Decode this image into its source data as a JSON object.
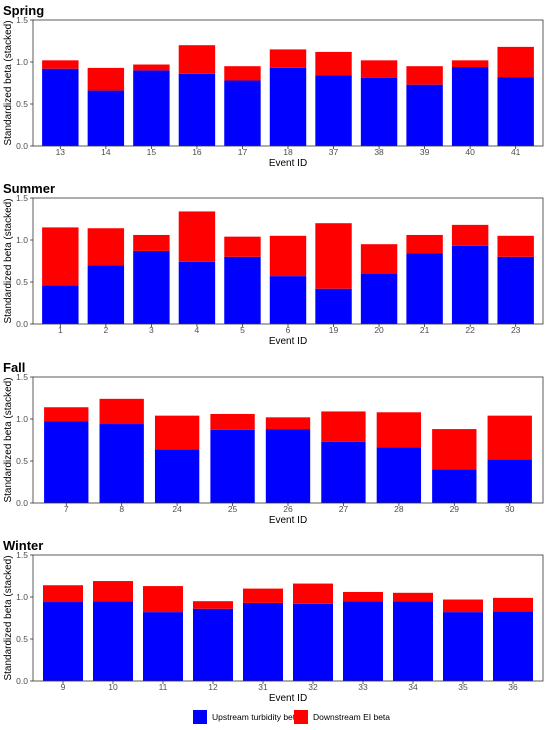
{
  "chart_data": [
    {
      "type": "bar",
      "stacked": true,
      "title": "Spring",
      "xlabel": "Event ID",
      "ylabel": "Standardized beta (stacked)",
      "ylim": [
        0,
        1.5
      ],
      "yticks": [
        "0.0",
        "0.5",
        "1.0",
        "1.5"
      ],
      "categories": [
        "13",
        "14",
        "15",
        "16",
        "17",
        "18",
        "37",
        "38",
        "39",
        "40",
        "41"
      ],
      "series": [
        {
          "name": "Upstream turbidity beta",
          "color": "#0000ff",
          "values": [
            0.92,
            0.66,
            0.9,
            0.86,
            0.78,
            0.93,
            0.84,
            0.81,
            0.73,
            0.94,
            0.82
          ]
        },
        {
          "name": "Downstream EI beta",
          "color": "#ff0000",
          "values": [
            0.1,
            0.27,
            0.07,
            0.34,
            0.17,
            0.22,
            0.28,
            0.21,
            0.22,
            0.08,
            0.36
          ]
        }
      ]
    },
    {
      "type": "bar",
      "stacked": true,
      "title": "Summer",
      "xlabel": "Event ID",
      "ylabel": "Standardized beta (stacked)",
      "ylim": [
        0,
        1.5
      ],
      "yticks": [
        "0.0",
        "0.5",
        "1.0",
        "1.5"
      ],
      "categories": [
        "1",
        "2",
        "3",
        "4",
        "5",
        "6",
        "19",
        "20",
        "21",
        "22",
        "23"
      ],
      "series": [
        {
          "name": "Upstream turbidity beta",
          "color": "#0000ff",
          "values": [
            0.46,
            0.7,
            0.87,
            0.74,
            0.8,
            0.57,
            0.42,
            0.6,
            0.84,
            0.93,
            0.8
          ]
        },
        {
          "name": "Downstream EI beta",
          "color": "#ff0000",
          "values": [
            0.69,
            0.44,
            0.19,
            0.6,
            0.24,
            0.48,
            0.78,
            0.35,
            0.22,
            0.25,
            0.25
          ]
        }
      ]
    },
    {
      "type": "bar",
      "stacked": true,
      "title": "Fall",
      "xlabel": "Event ID",
      "ylabel": "Standardized beta (stacked)",
      "ylim": [
        0,
        1.5
      ],
      "yticks": [
        "0.0",
        "0.5",
        "1.0",
        "1.5"
      ],
      "categories": [
        "7",
        "8",
        "24",
        "25",
        "26",
        "27",
        "28",
        "29",
        "30"
      ],
      "series": [
        {
          "name": "Upstream turbidity beta",
          "color": "#0000ff",
          "values": [
            0.97,
            0.94,
            0.64,
            0.87,
            0.88,
            0.73,
            0.66,
            0.4,
            0.52
          ]
        },
        {
          "name": "Downstream EI beta",
          "color": "#ff0000",
          "values": [
            0.17,
            0.3,
            0.4,
            0.19,
            0.14,
            0.36,
            0.42,
            0.48,
            0.52
          ]
        }
      ]
    },
    {
      "type": "bar",
      "stacked": true,
      "title": "Winter",
      "xlabel": "Event ID",
      "ylabel": "Standardized beta (stacked)",
      "ylim": [
        0,
        1.5
      ],
      "yticks": [
        "0.0",
        "0.5",
        "1.0",
        "1.5"
      ],
      "categories": [
        "9",
        "10",
        "11",
        "12",
        "31",
        "32",
        "33",
        "34",
        "35",
        "36"
      ],
      "series": [
        {
          "name": "Upstream turbidity beta",
          "color": "#0000ff",
          "values": [
            0.94,
            0.95,
            0.82,
            0.86,
            0.93,
            0.92,
            0.95,
            0.95,
            0.82,
            0.83
          ]
        },
        {
          "name": "Downstream EI beta",
          "color": "#ff0000",
          "values": [
            0.2,
            0.24,
            0.31,
            0.09,
            0.17,
            0.24,
            0.11,
            0.1,
            0.15,
            0.16
          ]
        }
      ]
    }
  ],
  "legend": {
    "position": "bottom",
    "items": [
      {
        "label": "Upstream turbidity beta",
        "color": "#0000ff"
      },
      {
        "label": "Downstream EI beta",
        "color": "#ff0000"
      }
    ]
  }
}
